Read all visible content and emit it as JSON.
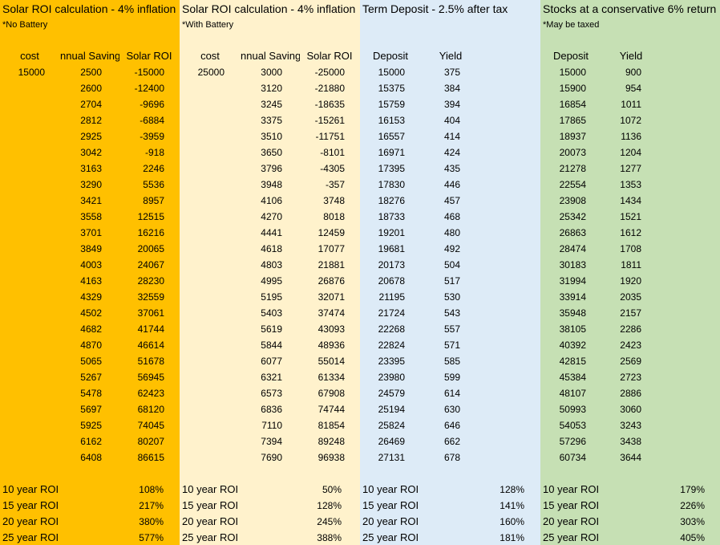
{
  "panels": [
    {
      "title": "Solar  ROI calculation - 4% inflation",
      "note": "*No Battery",
      "headers": [
        "cost",
        "nnual Saving",
        "Solar ROI"
      ],
      "first": "15000",
      "c1": [
        "2500",
        "2600",
        "2704",
        "2812",
        "2925",
        "3042",
        "3163",
        "3290",
        "3421",
        "3558",
        "3701",
        "3849",
        "4003",
        "4163",
        "4329",
        "4502",
        "4682",
        "4870",
        "5065",
        "5267",
        "5478",
        "5697",
        "5925",
        "6162",
        "6408"
      ],
      "c2": [
        "-15000",
        "-12400",
        "-9696",
        "-6884",
        "-3959",
        "-918",
        "2246",
        "5536",
        "8957",
        "12515",
        "16216",
        "20065",
        "24067",
        "28230",
        "32559",
        "37061",
        "41744",
        "46614",
        "51678",
        "56945",
        "62423",
        "68120",
        "74045",
        "80207",
        "86615"
      ],
      "roi": [
        {
          "label": "10 year ROI",
          "value": "108%"
        },
        {
          "label": "15 year ROI",
          "value": "217%"
        },
        {
          "label": "20 year ROI",
          "value": "380%"
        },
        {
          "label": "25 year ROI",
          "value": "577%"
        }
      ]
    },
    {
      "title": "Solar  ROI calculation - 4% inflation",
      "note": "*With Battery",
      "headers": [
        "cost",
        "nnual Saving",
        "Solar ROI"
      ],
      "first": "25000",
      "c1": [
        "3000",
        "3120",
        "3245",
        "3375",
        "3510",
        "3650",
        "3796",
        "3948",
        "4106",
        "4270",
        "4441",
        "4618",
        "4803",
        "4995",
        "5195",
        "5403",
        "5619",
        "5844",
        "6077",
        "6321",
        "6573",
        "6836",
        "7110",
        "7394",
        "7690"
      ],
      "c2": [
        "-25000",
        "-21880",
        "-18635",
        "-15261",
        "-11751",
        "-8101",
        "-4305",
        "-357",
        "3748",
        "8018",
        "12459",
        "17077",
        "21881",
        "26876",
        "32071",
        "37474",
        "43093",
        "48936",
        "55014",
        "61334",
        "67908",
        "74744",
        "81854",
        "89248",
        "96938"
      ],
      "roi": [
        {
          "label": "10 year ROI",
          "value": "50%"
        },
        {
          "label": "15 year ROI",
          "value": "128%"
        },
        {
          "label": "20 year ROI",
          "value": "245%"
        },
        {
          "label": "25 year ROI",
          "value": "388%"
        }
      ]
    },
    {
      "title": "Term Deposit - 2.5% after tax",
      "note": "",
      "headers": [
        "Deposit",
        "Yield"
      ],
      "c1": [
        "15000",
        "15375",
        "15759",
        "16153",
        "16557",
        "16971",
        "17395",
        "17830",
        "18276",
        "18733",
        "19201",
        "19681",
        "20173",
        "20678",
        "21195",
        "21724",
        "22268",
        "22824",
        "23395",
        "23980",
        "24579",
        "25194",
        "25824",
        "26469",
        "27131"
      ],
      "c2": [
        "375",
        "384",
        "394",
        "404",
        "414",
        "424",
        "435",
        "446",
        "457",
        "468",
        "480",
        "492",
        "504",
        "517",
        "530",
        "543",
        "557",
        "571",
        "585",
        "599",
        "614",
        "630",
        "646",
        "662",
        "678"
      ],
      "roi": [
        {
          "label": "10 year ROI",
          "value": "128%"
        },
        {
          "label": "15 year ROI",
          "value": "141%"
        },
        {
          "label": "20 year ROI",
          "value": "160%"
        },
        {
          "label": "25 year ROI",
          "value": "181%"
        }
      ]
    },
    {
      "title": "Stocks at a conservative 6% return",
      "note": "*May be taxed",
      "headers": [
        "Deposit",
        "Yield"
      ],
      "c1": [
        "15000",
        "15900",
        "16854",
        "17865",
        "18937",
        "20073",
        "21278",
        "22554",
        "23908",
        "25342",
        "26863",
        "28474",
        "30183",
        "31994",
        "33914",
        "35948",
        "38105",
        "40392",
        "42815",
        "45384",
        "48107",
        "50993",
        "54053",
        "57296",
        "60734"
      ],
      "c2": [
        "900",
        "954",
        "1011",
        "1072",
        "1136",
        "1204",
        "1277",
        "1353",
        "1434",
        "1521",
        "1612",
        "1708",
        "1811",
        "1920",
        "2035",
        "2157",
        "2286",
        "2423",
        "2569",
        "2723",
        "2886",
        "3060",
        "3243",
        "3438",
        "3644"
      ],
      "roi": [
        {
          "label": "10 year ROI",
          "value": "179%"
        },
        {
          "label": "15 year ROI",
          "value": "226%"
        },
        {
          "label": "20 year ROI",
          "value": "303%"
        },
        {
          "label": "25 year ROI",
          "value": "405%"
        }
      ]
    }
  ],
  "colors": {
    "orange": "#FFC000",
    "cream": "#FFF2CC",
    "blue": "#DDEBF7",
    "green": "#C6E0B4"
  }
}
